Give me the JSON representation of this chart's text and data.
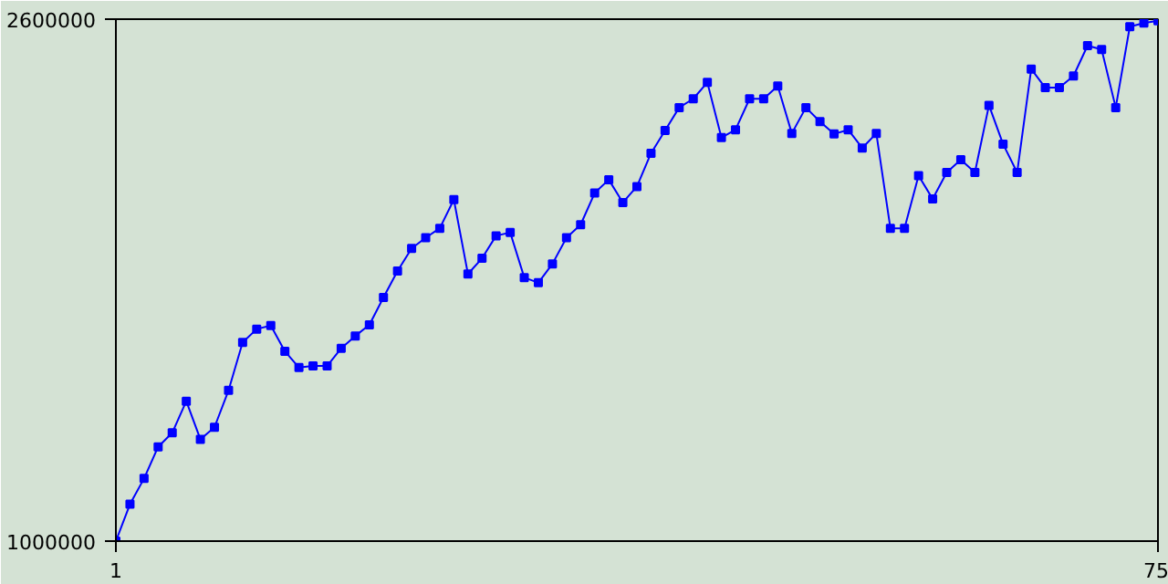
{
  "chart_data": {
    "type": "line",
    "x": [
      1,
      2,
      3,
      4,
      5,
      6,
      7,
      8,
      9,
      10,
      11,
      12,
      13,
      14,
      15,
      16,
      17,
      18,
      19,
      20,
      21,
      22,
      23,
      24,
      25,
      26,
      27,
      28,
      29,
      30,
      31,
      32,
      33,
      34,
      35,
      36,
      37,
      38,
      39,
      40,
      41,
      42,
      43,
      44,
      45,
      46,
      47,
      48,
      49,
      50,
      51,
      52,
      53,
      54,
      55,
      56,
      57,
      58,
      59,
      60,
      61,
      62,
      63,
      64,
      65,
      66,
      67,
      68,
      69,
      70,
      71,
      72,
      73,
      74,
      75
    ],
    "series": [
      {
        "color": "#0000ff",
        "values": [
          1000000,
          1113000,
          1192000,
          1289000,
          1332000,
          1429000,
          1312000,
          1349000,
          1462000,
          1609000,
          1650000,
          1661000,
          1582000,
          1532000,
          1537000,
          1537000,
          1591000,
          1629000,
          1663000,
          1747000,
          1828000,
          1897000,
          1930000,
          1959000,
          2047000,
          1819000,
          1867000,
          1936000,
          1946000,
          1808000,
          1792000,
          1850000,
          1930000,
          1970000,
          2067000,
          2108000,
          2038000,
          2087000,
          2189000,
          2259000,
          2329000,
          2356000,
          2406000,
          2237000,
          2261000,
          2356000,
          2356000,
          2395000,
          2250000,
          2329000,
          2286000,
          2248000,
          2261000,
          2205000,
          2250000,
          1959000,
          1959000,
          2120000,
          2049000,
          2130000,
          2169000,
          2130000,
          2336000,
          2217000,
          2130000,
          2447000,
          2390000,
          2390000,
          2426000,
          2519000,
          2507000,
          2329000,
          2577000,
          2588000,
          2595000
        ]
      }
    ],
    "xlim": [
      1,
      75
    ],
    "ylim": [
      1000000,
      2600000
    ],
    "xticks": [
      1,
      75
    ],
    "yticks": [
      1000000,
      2600000
    ],
    "marker": "square",
    "line_style": "solid"
  }
}
